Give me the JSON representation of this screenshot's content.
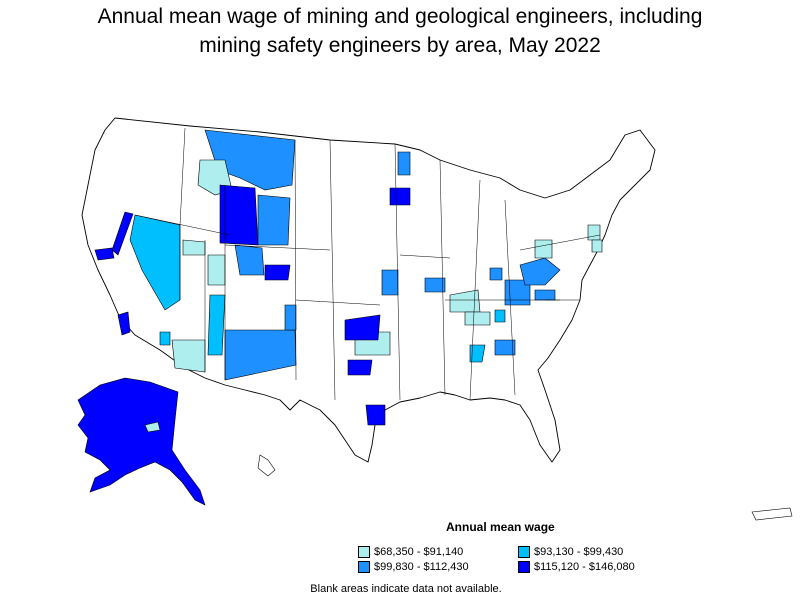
{
  "title": "Annual mean wage of mining and geological engineers, including\nmining safety engineers by area, May 2022",
  "legend": {
    "title": "Annual mean wage",
    "items": [
      {
        "label": "$68,350 - $91,140",
        "color": "#aeeeee"
      },
      {
        "label": "$93,130 - $99,430",
        "color": "#00bfff"
      },
      {
        "label": "$99,830 - $112,430",
        "color": "#1e90ff"
      },
      {
        "label": "$115,120 - $146,080",
        "color": "#0000ff"
      }
    ]
  },
  "note": "Blank areas indicate data not available.",
  "colors": {
    "background": "#ffffff",
    "no_data": "#ffffff",
    "border": "#000000"
  }
}
